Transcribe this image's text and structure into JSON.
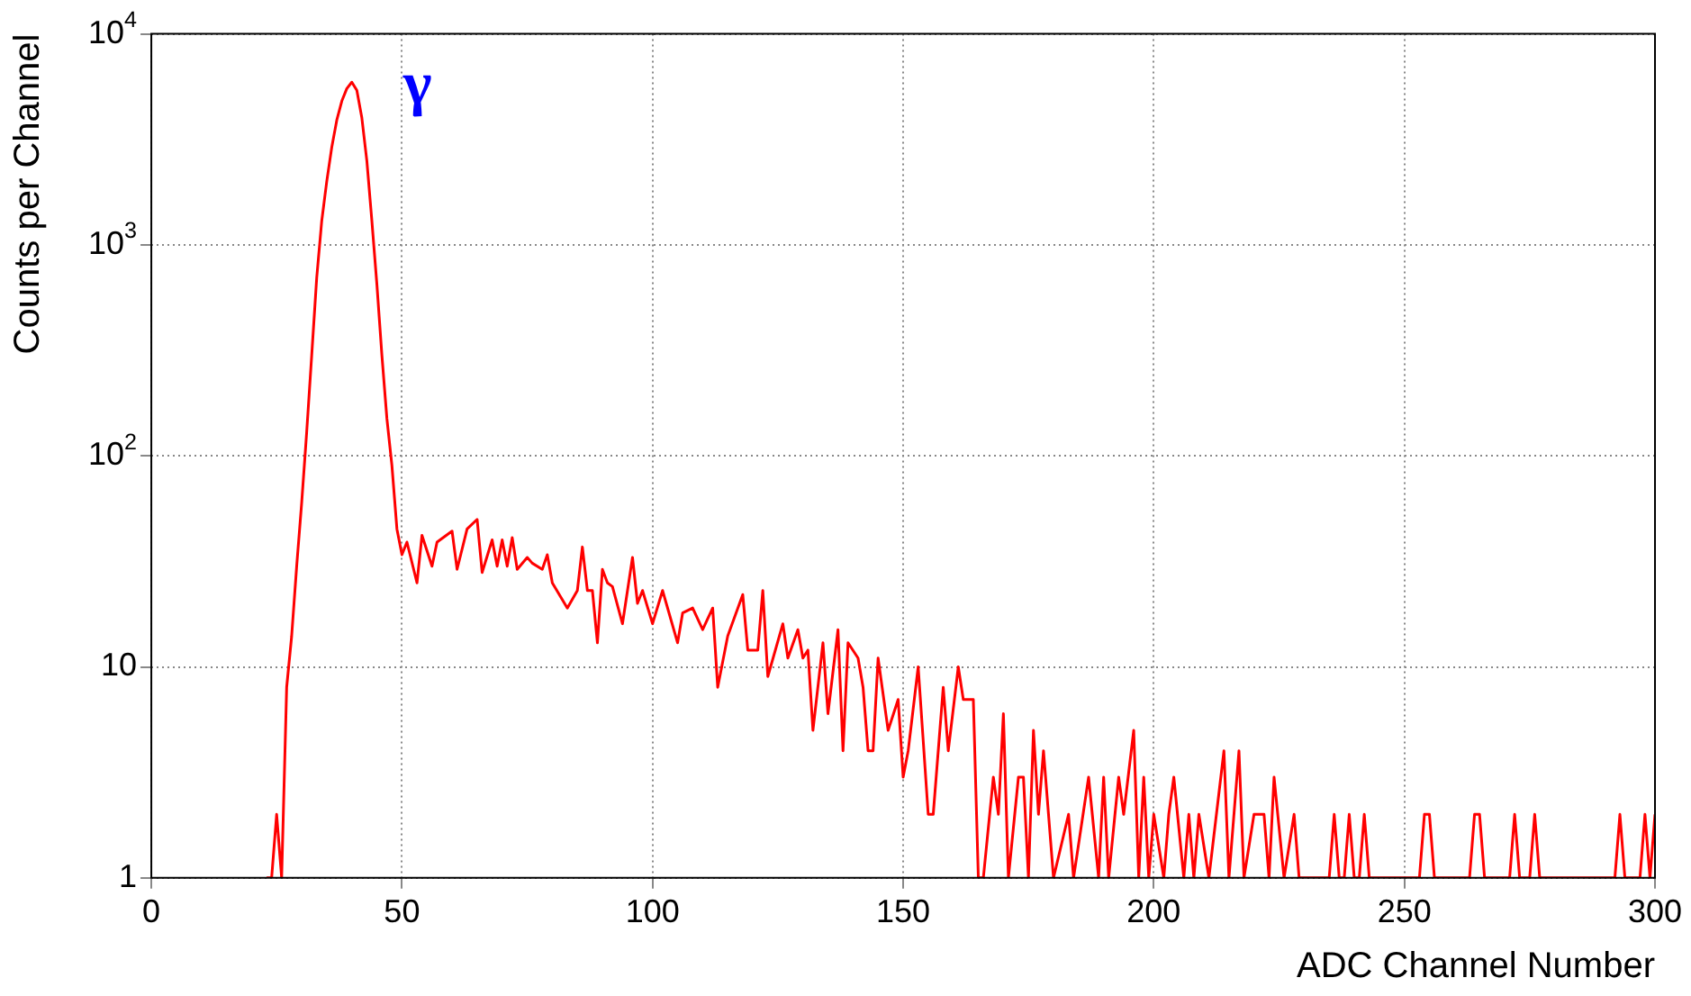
{
  "chart_data": {
    "type": "line",
    "xlabel": "ADC Channel Number",
    "ylabel": "Counts per Channel",
    "log": "y",
    "grid": true,
    "marker": "none",
    "line_style": "solid",
    "xlim": [
      0,
      300
    ],
    "xticks": [
      0,
      50,
      100,
      150,
      200,
      250,
      300
    ],
    "ylim": [
      1,
      10000
    ],
    "yticks": [
      1,
      10,
      {
        "value": 100,
        "label": "10$^{2}$"
      },
      {
        "value": 1000,
        "label": "10$^{3}$"
      },
      {
        "value": 10000,
        "label": "10$^{4}$"
      }
    ],
    "annotations": [
      "γ"
    ],
    "series": [
      {
        "color": "#ff0000",
        "x": [
          23,
          24,
          25,
          26,
          27,
          28,
          29,
          30,
          31,
          32,
          33,
          34,
          35,
          36,
          37,
          38,
          39,
          40,
          41,
          42,
          43,
          44,
          45,
          46,
          47,
          48,
          49,
          50,
          51,
          53,
          54,
          56,
          57,
          60,
          61,
          63,
          65,
          66,
          68,
          69,
          70,
          71,
          72,
          73,
          75,
          76,
          78,
          79,
          80,
          83,
          85,
          86,
          87,
          88,
          89,
          90,
          91,
          92,
          94,
          96,
          97,
          98,
          100,
          102,
          105,
          106,
          108,
          110,
          112,
          113,
          115,
          118,
          119,
          121,
          122,
          123,
          126,
          127,
          129,
          130,
          131,
          132,
          134,
          135,
          137,
          138,
          139,
          141,
          142,
          143,
          144,
          145,
          147,
          149,
          150,
          151,
          153,
          155,
          156,
          158,
          159,
          161,
          162,
          164,
          165,
          166,
          168,
          169,
          170,
          171,
          173,
          174,
          175,
          176,
          177,
          178,
          180,
          183,
          184,
          187,
          189,
          190,
          191,
          193,
          194,
          196,
          197,
          198,
          199,
          200,
          202,
          203,
          204,
          206,
          207,
          208,
          209,
          211,
          214,
          215,
          217,
          218,
          220,
          222,
          223,
          224,
          226,
          228,
          229,
          235,
          236,
          237,
          238,
          239,
          240,
          241,
          242,
          243,
          253,
          254,
          255,
          256,
          263,
          264,
          265,
          266,
          271,
          272,
          273,
          275,
          276,
          277,
          292,
          293,
          294,
          297,
          298,
          299,
          300
        ],
        "values": [
          1,
          1,
          2,
          1,
          8,
          14,
          30,
          60,
          130,
          300,
          700,
          1300,
          2000,
          2900,
          3900,
          4800,
          5500,
          5900,
          5400,
          4000,
          2500,
          1300,
          650,
          300,
          150,
          90,
          45,
          34,
          39,
          25,
          42,
          30,
          39,
          44,
          29,
          45,
          50,
          28,
          40,
          30,
          40,
          30,
          41,
          29,
          33,
          31,
          29,
          34,
          25,
          19,
          23,
          37,
          23,
          23,
          13,
          29,
          25,
          24,
          16,
          33,
          20,
          23,
          16,
          23,
          13,
          18,
          19,
          15,
          19,
          8,
          14,
          22,
          12,
          12,
          23,
          9,
          16,
          11,
          15,
          11,
          12,
          5,
          13,
          6,
          15,
          4,
          13,
          11,
          8,
          4,
          4,
          11,
          5,
          7,
          3,
          4,
          10,
          2,
          2,
          8,
          4,
          10,
          7,
          7,
          1,
          1,
          3,
          2,
          6,
          1,
          3,
          3,
          1,
          5,
          2,
          4,
          1,
          2,
          1,
          3,
          1,
          3,
          1,
          3,
          2,
          5,
          1,
          3,
          1,
          2,
          1,
          2,
          3,
          1,
          2,
          1,
          2,
          1,
          4,
          1,
          4,
          1,
          2,
          2,
          1,
          3,
          1,
          2,
          1,
          1,
          2,
          1,
          1,
          2,
          1,
          1,
          2,
          1,
          1,
          2,
          2,
          1,
          1,
          2,
          2,
          1,
          1,
          2,
          1,
          1,
          2,
          1,
          1,
          2,
          1,
          1,
          2,
          1,
          2
        ]
      }
    ]
  }
}
